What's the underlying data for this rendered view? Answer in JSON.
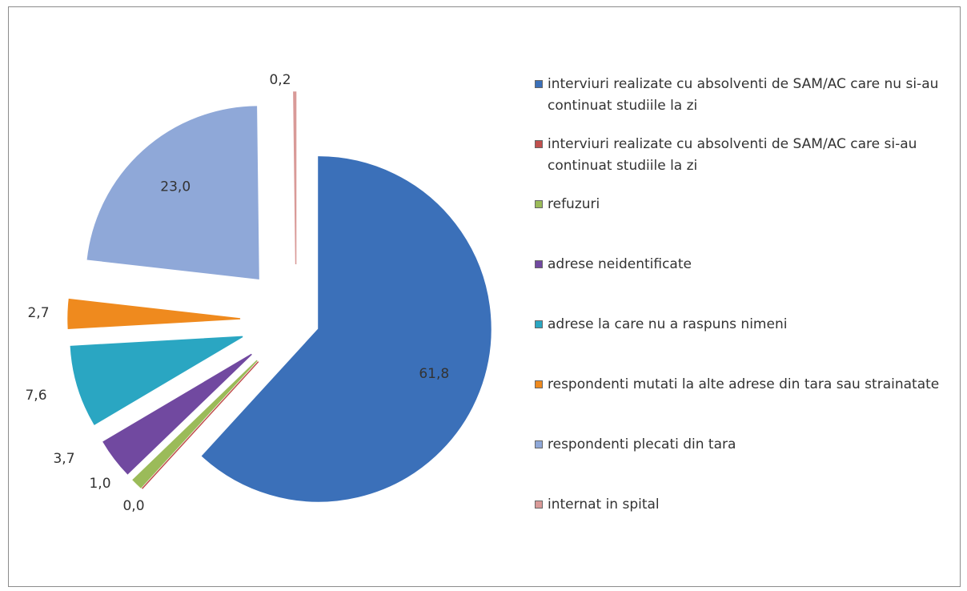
{
  "chart_data": {
    "type": "pie",
    "categories": [
      "interviuri realizate cu absolventi de SAM/AC care nu si-au continuat studiile la zi",
      "interviuri realizate cu absolventi de SAM/AC care si-au continuat studiile la zi",
      "refuzuri",
      "adrese neidentificate",
      "adrese la care nu a raspuns nimeni",
      "respondenti mutati la alte adrese din tara sau strainatate",
      "respondenti plecati din tara",
      "internat in spital"
    ],
    "values": [
      61.8,
      0.0,
      1.0,
      3.7,
      7.6,
      2.7,
      23.0,
      0.2
    ],
    "value_labels": [
      "61,8",
      "0,0",
      "1,0",
      "3,7",
      "7,6",
      "2,7",
      "23,0",
      "0,2"
    ],
    "colors": [
      "#3b70b9",
      "#c0504d",
      "#9bbb59",
      "#7149a0",
      "#2aa6c2",
      "#ef8a1e",
      "#8fa8d8",
      "#d99a98"
    ],
    "legend": "right"
  }
}
